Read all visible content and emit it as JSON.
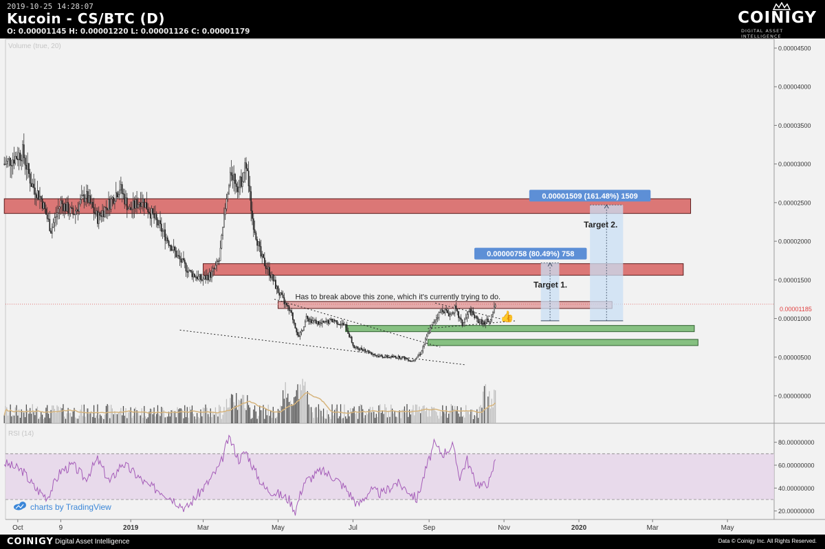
{
  "header": {
    "timestamp": "2019-10-25 14:28:07",
    "title": "Kucoin - CS/BTC (D)",
    "ohlc": "O: 0.00001145 H: 0.00001220 L: 0.00001126 C: 0.00001179",
    "logo_word": "COINIGY",
    "logo_sub": "DIGITAL ASSET INTELLIGENCE"
  },
  "footer": {
    "logo": "COINIGY",
    "tagline": "Digital Asset Intelligence",
    "copyright": "Data © Coinigy Inc.  All Rights Reserved."
  },
  "colors": {
    "accent_red": "#d9706f",
    "accent_green": "#7fbd7a",
    "rsi_band": "#e5d3e8",
    "rsi_line": "#a45bb8",
    "volume_ma": "#d6b47c",
    "measure_fill": "#c9dff4",
    "measure_label": "#5d8fd6",
    "tradingview_blue": "#3b87d8"
  },
  "chart_data": {
    "type": "candlestick",
    "title": "Kucoin - CS/BTC (D)",
    "price_axis": {
      "ticks": [
        "0.00004500",
        "0.00004000",
        "0.00003500",
        "0.00003000",
        "0.00002500",
        "0.00002000",
        "0.00001500",
        "0.00001000",
        "0.00000500",
        "0.00000000"
      ],
      "ylim": [
        0,
        4.55e-05
      ]
    },
    "time_axis": {
      "ticks": [
        "Oct",
        "9",
        "2019",
        "Mar",
        "May",
        "Jul",
        "Sep",
        "Nov",
        "2020",
        "Mar",
        "May"
      ],
      "range": [
        "2018-10-01",
        "2020-05-31"
      ]
    },
    "price_path": [
      [
        "2018-09-20",
        3e-05
      ],
      [
        "2018-10-05",
        3.15e-05
      ],
      [
        "2018-10-12",
        2.75e-05
      ],
      [
        "2018-10-20",
        2.55e-05
      ],
      [
        "2018-10-28",
        2.15e-05
      ],
      [
        "2018-11-05",
        2.5e-05
      ],
      [
        "2018-11-15",
        2.35e-05
      ],
      [
        "2018-11-25",
        2.6e-05
      ],
      [
        "2018-12-05",
        2.3e-05
      ],
      [
        "2018-12-15",
        2.5e-05
      ],
      [
        "2018-12-23",
        2.7e-05
      ],
      [
        "2018-12-31",
        2.4e-05
      ],
      [
        "2019-01-10",
        2.55e-05
      ],
      [
        "2019-01-20",
        2.3e-05
      ],
      [
        "2019-01-30",
        2.05e-05
      ],
      [
        "2019-02-08",
        1.8e-05
      ],
      [
        "2019-02-18",
        1.6e-05
      ],
      [
        "2019-02-28",
        1.5e-05
      ],
      [
        "2019-03-08",
        1.58e-05
      ],
      [
        "2019-03-14",
        1.75e-05
      ],
      [
        "2019-03-19",
        2.4e-05
      ],
      [
        "2019-03-24",
        2.9e-05
      ],
      [
        "2019-03-30",
        2.7e-05
      ],
      [
        "2019-04-05",
        3e-05
      ],
      [
        "2019-04-10",
        2.3e-05
      ],
      [
        "2019-04-17",
        1.8e-05
      ],
      [
        "2019-04-24",
        1.6e-05
      ],
      [
        "2019-05-01",
        1.35e-05
      ],
      [
        "2019-05-08",
        1.15e-05
      ],
      [
        "2019-05-12",
        1.05e-05
      ],
      [
        "2019-05-15",
        9e-06
      ],
      [
        "2019-05-18",
        7.5e-06
      ],
      [
        "2019-05-24",
        1e-05
      ],
      [
        "2019-06-05",
        9.3e-06
      ],
      [
        "2019-06-15",
        9.8e-06
      ],
      [
        "2019-06-25",
        9e-06
      ],
      [
        "2019-07-02",
        6.2e-06
      ],
      [
        "2019-07-10",
        6e-06
      ],
      [
        "2019-07-20",
        5.2e-06
      ],
      [
        "2019-07-30",
        5e-06
      ],
      [
        "2019-08-10",
        5e-06
      ],
      [
        "2019-08-18",
        4.5e-06
      ],
      [
        "2019-08-25",
        5.5e-06
      ],
      [
        "2019-08-31",
        8e-06
      ],
      [
        "2019-09-06",
        1e-05
      ],
      [
        "2019-09-12",
        1.12e-05
      ],
      [
        "2019-09-18",
        1.05e-05
      ],
      [
        "2019-09-22",
        1.13e-05
      ],
      [
        "2019-09-28",
        9.2e-06
      ],
      [
        "2019-10-04",
        1.1e-05
      ],
      [
        "2019-10-10",
        9.8e-06
      ],
      [
        "2019-10-16",
        9.4e-06
      ],
      [
        "2019-10-21",
        1e-05
      ],
      [
        "2019-10-25",
        1.18e-05
      ]
    ],
    "current_price": {
      "value": 1.185e-05,
      "label": "0.00001185"
    },
    "zones": [
      {
        "name": "upper-red-zone",
        "kind": "resistance",
        "from": "2018-09-20",
        "to": "2020-04-01",
        "low": 2.36e-05,
        "high": 2.55e-05
      },
      {
        "name": "middle-red-zone",
        "kind": "resistance",
        "from": "2019-03-01",
        "to": "2020-03-26",
        "low": 1.56e-05,
        "high": 1.71e-05
      },
      {
        "name": "break-zone",
        "kind": "resistance",
        "from": "2019-05-01",
        "to": "2020-01-28",
        "low": 1.13e-05,
        "high": 1.22e-05
      },
      {
        "name": "green-support-zone",
        "kind": "support",
        "from": "2019-06-25",
        "to": "2020-04-04",
        "low": 8.3e-06,
        "high": 9.1e-06
      },
      {
        "name": "green-support-zone",
        "kind": "support",
        "from": "2019-08-31",
        "to": "2020-04-07",
        "low": 6.5e-06,
        "high": 7.3e-06
      }
    ],
    "trendlines": [
      {
        "from": [
          "2019-04-28",
          1.25e-05
        ],
        "to": [
          "2019-09-10",
          6.3e-06
        ]
      },
      {
        "from": [
          "2019-02-10",
          8.5e-06
        ],
        "to": [
          "2019-10-01",
          4e-06
        ]
      },
      {
        "from": [
          "2019-09-06",
          1.2e-05
        ],
        "to": [
          "2019-11-05",
          9.7e-06
        ]
      },
      {
        "from": [
          "2019-08-31",
          8.7e-06
        ],
        "to": [
          "2019-11-10",
          9.7e-06
        ]
      }
    ],
    "measurements": [
      {
        "label": "0.00000758 (80.49%) 758",
        "from": "2019-12-01",
        "to": "2019-12-16",
        "low": 9.7e-06,
        "high": 1.72e-05
      },
      {
        "label": "0.00001509 (161.48%) 1509",
        "from": "2020-01-10",
        "to": "2020-02-06",
        "low": 9.7e-06,
        "high": 2.47e-05
      }
    ],
    "annotations": [
      {
        "text": "Target 2.",
        "date": "2020-01-05",
        "value": 2.18e-05
      },
      {
        "text": "Target 1.",
        "date": "2019-11-25",
        "value": 1.4e-05
      },
      {
        "text": "Has to break above this zone, which it's currently trying to do.",
        "date": "2019-05-15",
        "value": 1.25e-05
      }
    ],
    "volume": {
      "label": "Volume (true, 20)"
    },
    "rsi": {
      "label": "RSI (14)",
      "ticks": [
        "80.00000000",
        "60.00000000",
        "40.00000000",
        "20.00000000"
      ],
      "ylim": [
        15,
        87
      ],
      "upper_band": 70,
      "lower_band": 30,
      "path": [
        [
          "2018-09-20",
          62
        ],
        [
          "2018-10-05",
          55
        ],
        [
          "2018-10-15",
          40
        ],
        [
          "2018-10-25",
          32
        ],
        [
          "2018-11-05",
          55
        ],
        [
          "2018-11-15",
          60
        ],
        [
          "2018-11-25",
          48
        ],
        [
          "2018-12-05",
          65
        ],
        [
          "2018-12-15",
          45
        ],
        [
          "2018-12-25",
          62
        ],
        [
          "2019-01-05",
          52
        ],
        [
          "2019-01-15",
          42
        ],
        [
          "2019-01-25",
          38
        ],
        [
          "2019-02-05",
          30
        ],
        [
          "2019-02-15",
          22
        ],
        [
          "2019-02-25",
          35
        ],
        [
          "2019-03-05",
          45
        ],
        [
          "2019-03-15",
          60
        ],
        [
          "2019-03-22",
          85
        ],
        [
          "2019-03-30",
          65
        ],
        [
          "2019-04-05",
          72
        ],
        [
          "2019-04-12",
          55
        ],
        [
          "2019-04-20",
          40
        ],
        [
          "2019-05-01",
          35
        ],
        [
          "2019-05-10",
          30
        ],
        [
          "2019-05-15",
          20
        ],
        [
          "2019-05-22",
          45
        ],
        [
          "2019-06-05",
          55
        ],
        [
          "2019-06-15",
          50
        ],
        [
          "2019-06-25",
          40
        ],
        [
          "2019-07-05",
          25
        ],
        [
          "2019-07-15",
          38
        ],
        [
          "2019-07-25",
          35
        ],
        [
          "2019-08-05",
          45
        ],
        [
          "2019-08-15",
          38
        ],
        [
          "2019-08-22",
          30
        ],
        [
          "2019-08-29",
          55
        ],
        [
          "2019-09-05",
          78
        ],
        [
          "2019-09-12",
          70
        ],
        [
          "2019-09-20",
          77
        ],
        [
          "2019-09-26",
          50
        ],
        [
          "2019-10-02",
          65
        ],
        [
          "2019-10-08",
          46
        ],
        [
          "2019-10-15",
          42
        ],
        [
          "2019-10-21",
          47
        ],
        [
          "2019-10-25",
          66
        ]
      ]
    }
  },
  "branding": {
    "tradingview": "charts by TradingView"
  }
}
